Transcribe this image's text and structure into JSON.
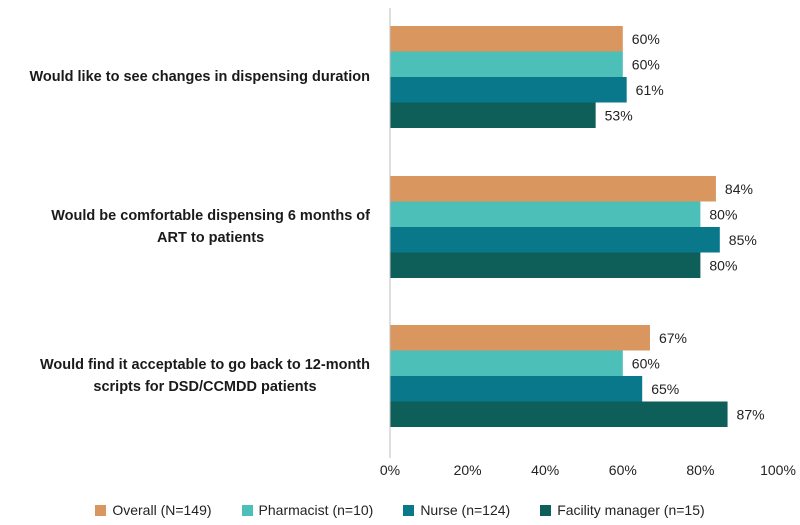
{
  "chart_data": {
    "type": "bar",
    "orientation": "horizontal",
    "categories": [
      "Would like to see changes in dispensing duration",
      "Would be comfortable dispensing 6 months of ART to patients",
      "Would find it acceptable to go back to 12-month scripts for DSD/CCMDD patients"
    ],
    "category_lines": [
      [
        "Would like to see changes in dispensing duration"
      ],
      [
        "Would be comfortable dispensing 6 months of",
        "ART to patients"
      ],
      [
        "Would find it acceptable to go back to 12-month",
        "scripts for DSD/CCMDD patients"
      ]
    ],
    "series": [
      {
        "name": "Overall (N=149)",
        "color": "#D9975F",
        "values": [
          60,
          84,
          67
        ]
      },
      {
        "name": "Pharmacist (n=10)",
        "color": "#4DBFB9",
        "values": [
          60,
          80,
          60
        ]
      },
      {
        "name": "Nurse (n=124)",
        "color": "#08788A",
        "values": [
          61,
          85,
          65
        ]
      },
      {
        "name": "Facility manager (n=15)",
        "color": "#0E5E5A",
        "values": [
          53,
          80,
          87
        ]
      }
    ],
    "xlim": [
      0,
      100
    ],
    "xticks": [
      "0%",
      "20%",
      "40%",
      "60%",
      "80%",
      "100%"
    ],
    "value_suffix": "%",
    "legend_position": "bottom",
    "title": "",
    "xlabel": "",
    "ylabel": ""
  }
}
